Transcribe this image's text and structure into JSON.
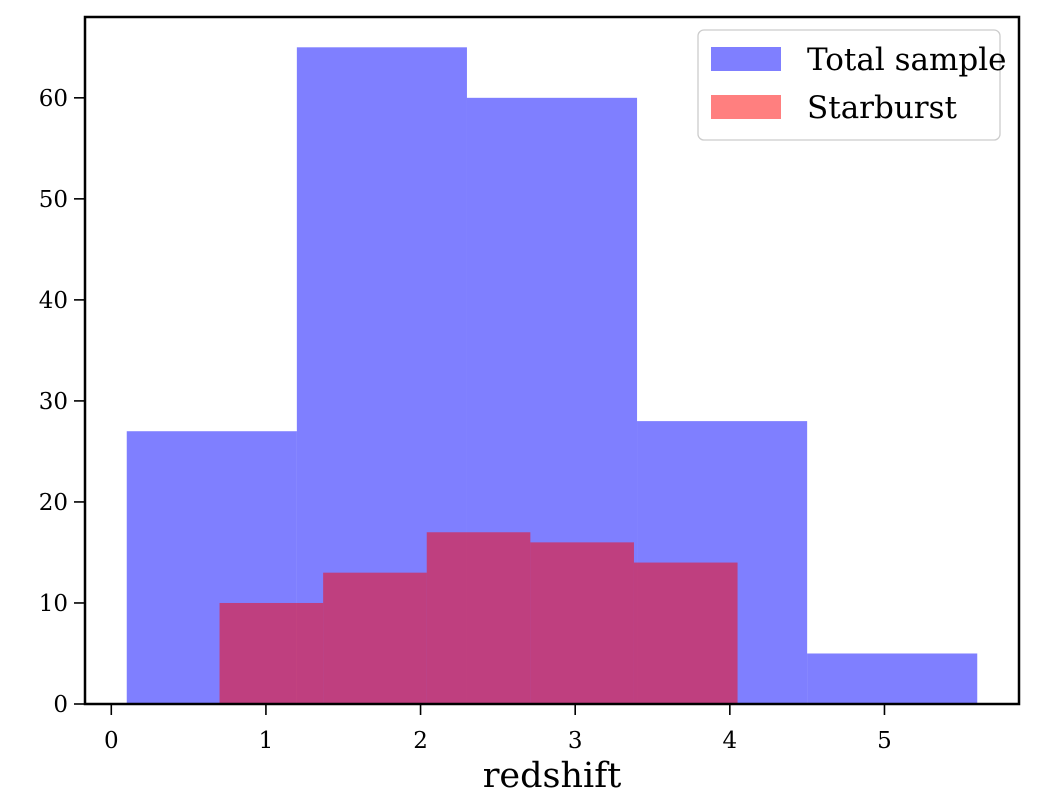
{
  "chart_data": {
    "type": "bar",
    "title": "",
    "xlabel": "redshift",
    "ylabel": "",
    "xlim": [
      -0.17,
      5.87
    ],
    "ylim": [
      0,
      68
    ],
    "xticks": [
      0,
      1,
      2,
      3,
      4,
      5
    ],
    "yticks": [
      0,
      10,
      20,
      30,
      40,
      50,
      60
    ],
    "grid": false,
    "legend_position": "top-right",
    "series": [
      {
        "name": "Total sample",
        "color": "#0000ff",
        "opacity": 0.5,
        "bins": [
          {
            "start": 0.1,
            "end": 1.2,
            "value": 27
          },
          {
            "start": 1.2,
            "end": 2.3,
            "value": 65
          },
          {
            "start": 2.3,
            "end": 3.4,
            "value": 60
          },
          {
            "start": 3.4,
            "end": 4.5,
            "value": 28
          },
          {
            "start": 4.5,
            "end": 5.6,
            "value": 5
          }
        ]
      },
      {
        "name": "Starburst",
        "color": "#ff0000",
        "opacity": 0.5,
        "bins": [
          {
            "start": 0.7,
            "end": 1.37,
            "value": 10
          },
          {
            "start": 1.37,
            "end": 2.04,
            "value": 13
          },
          {
            "start": 2.04,
            "end": 2.71,
            "value": 17
          },
          {
            "start": 2.71,
            "end": 3.38,
            "value": 16
          },
          {
            "start": 3.38,
            "end": 4.05,
            "value": 14
          }
        ]
      }
    ]
  }
}
